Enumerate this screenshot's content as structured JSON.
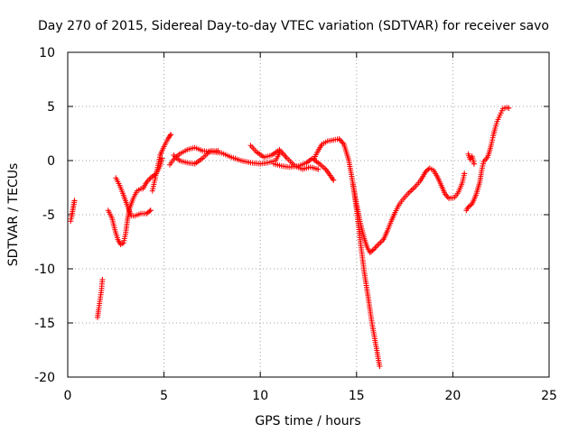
{
  "chart_data": {
    "type": "scatter",
    "title": "Day 270 of 2015, Sidereal Day-to-day VTEC variation (SDTVAR) for receiver savo",
    "xlabel": "GPS time / hours",
    "ylabel": "SDTVAR / TECUs",
    "xlim": [
      0,
      25
    ],
    "ylim": [
      -20,
      10
    ],
    "xticks": [
      0,
      5,
      10,
      15,
      20,
      25
    ],
    "yticks": [
      -20,
      -15,
      -10,
      -5,
      0,
      5,
      10
    ],
    "grid": true,
    "marker": "+",
    "color": "#ff0000",
    "series": [
      {
        "name": "SDTVAR",
        "segments": [
          [
            [
              0.15,
              -5.6
            ],
            [
              0.2,
              -5.2
            ],
            [
              0.25,
              -4.7
            ],
            [
              0.3,
              -4.2
            ],
            [
              0.35,
              -3.7
            ]
          ],
          [
            [
              1.55,
              -14.5
            ],
            [
              1.6,
              -13.8
            ],
            [
              1.65,
              -13.2
            ],
            [
              1.7,
              -12.6
            ],
            [
              1.75,
              -12.0
            ],
            [
              1.8,
              -11.0
            ]
          ],
          [
            [
              2.1,
              -4.6
            ],
            [
              2.3,
              -5.3
            ],
            [
              2.45,
              -6.4
            ],
            [
              2.6,
              -7.3
            ],
            [
              2.75,
              -7.75
            ],
            [
              2.9,
              -7.6
            ],
            [
              3.0,
              -6.8
            ],
            [
              3.1,
              -5.5
            ],
            [
              3.2,
              -4.5
            ],
            [
              3.4,
              -3.5
            ],
            [
              3.6,
              -2.8
            ],
            [
              3.8,
              -2.6
            ]
          ],
          [
            [
              2.5,
              -1.6
            ],
            [
              2.7,
              -2.3
            ],
            [
              2.9,
              -3.2
            ],
            [
              3.1,
              -4.2
            ],
            [
              3.3,
              -5.1
            ],
            [
              3.5,
              -5.1
            ],
            [
              3.8,
              -4.9
            ],
            [
              4.1,
              -4.9
            ],
            [
              4.3,
              -4.6
            ]
          ],
          [
            [
              3.9,
              -2.6
            ],
            [
              4.1,
              -2.0
            ],
            [
              4.3,
              -1.6
            ],
            [
              4.6,
              -1.2
            ],
            [
              4.8,
              -0.5
            ],
            [
              4.9,
              0.2
            ]
          ],
          [
            [
              4.4,
              -2.8
            ],
            [
              4.5,
              -2.0
            ],
            [
              4.6,
              -1.2
            ],
            [
              4.8,
              0.5
            ],
            [
              5.0,
              1.3
            ],
            [
              5.2,
              2.0
            ],
            [
              5.35,
              2.4
            ]
          ],
          [
            [
              5.3,
              -0.4
            ],
            [
              5.5,
              0.1
            ],
            [
              5.8,
              0.6
            ],
            [
              6.2,
              1.0
            ],
            [
              6.6,
              1.2
            ],
            [
              7.0,
              0.9
            ],
            [
              7.5,
              0.8
            ],
            [
              8.0,
              0.7
            ],
            [
              8.5,
              0.3
            ],
            [
              9.0,
              0.0
            ],
            [
              9.5,
              -0.2
            ],
            [
              10.0,
              -0.3
            ],
            [
              10.4,
              -0.2
            ],
            [
              10.8,
              0.0
            ],
            [
              11.0,
              0.7
            ]
          ],
          [
            [
              5.5,
              0.5
            ],
            [
              5.8,
              0.0
            ],
            [
              6.2,
              -0.2
            ],
            [
              6.6,
              -0.3
            ],
            [
              7.0,
              0.2
            ],
            [
              7.4,
              0.9
            ],
            [
              7.8,
              0.9
            ]
          ],
          [
            [
              9.5,
              1.4
            ],
            [
              9.8,
              0.8
            ],
            [
              10.2,
              0.3
            ],
            [
              10.6,
              0.5
            ],
            [
              11.0,
              1.0
            ],
            [
              11.4,
              0.2
            ],
            [
              11.8,
              -0.5
            ],
            [
              12.2,
              -0.8
            ],
            [
              12.6,
              -0.6
            ],
            [
              13.0,
              -0.8
            ]
          ],
          [
            [
              10.7,
              -0.3
            ],
            [
              11.1,
              -0.5
            ],
            [
              11.5,
              -0.6
            ],
            [
              12.0,
              -0.5
            ],
            [
              12.4,
              -0.2
            ],
            [
              12.7,
              0.2
            ],
            [
              13.0,
              -0.2
            ],
            [
              13.4,
              -0.8
            ],
            [
              13.8,
              -1.8
            ]
          ],
          [
            [
              12.8,
              0.2
            ],
            [
              13.0,
              0.9
            ],
            [
              13.2,
              1.5
            ],
            [
              13.5,
              1.8
            ],
            [
              13.8,
              1.9
            ],
            [
              14.1,
              2.0
            ],
            [
              14.35,
              1.5
            ],
            [
              14.6,
              0.0
            ],
            [
              14.8,
              -2.0
            ],
            [
              15.0,
              -4.0
            ],
            [
              15.2,
              -5.8
            ],
            [
              15.4,
              -7.2
            ],
            [
              15.55,
              -8.0
            ],
            [
              15.7,
              -8.5
            ],
            [
              15.9,
              -8.2
            ],
            [
              16.1,
              -7.8
            ],
            [
              16.4,
              -7.3
            ],
            [
              16.6,
              -6.5
            ],
            [
              16.8,
              -5.6
            ],
            [
              17.0,
              -4.8
            ],
            [
              17.2,
              -4.1
            ],
            [
              17.4,
              -3.6
            ],
            [
              17.7,
              -3.0
            ],
            [
              18.0,
              -2.5
            ],
            [
              18.3,
              -1.9
            ],
            [
              18.6,
              -1.0
            ],
            [
              18.8,
              -0.7
            ],
            [
              19.0,
              -0.9
            ],
            [
              19.2,
              -1.5
            ],
            [
              19.4,
              -2.3
            ],
            [
              19.6,
              -3.1
            ],
            [
              19.8,
              -3.5
            ],
            [
              20.1,
              -3.4
            ],
            [
              20.3,
              -2.9
            ],
            [
              20.5,
              -2.0
            ],
            [
              20.6,
              -1.2
            ]
          ],
          [
            [
              14.8,
              -2.0
            ],
            [
              15.0,
              -4.5
            ],
            [
              15.2,
              -7.5
            ],
            [
              15.4,
              -10.3
            ],
            [
              15.6,
              -12.6
            ],
            [
              15.8,
              -15.0
            ],
            [
              16.0,
              -17.0
            ],
            [
              16.2,
              -19.0
            ]
          ],
          [
            [
              20.7,
              -4.6
            ],
            [
              20.8,
              -4.3
            ],
            [
              21.0,
              -4.0
            ],
            [
              21.2,
              -3.2
            ],
            [
              21.4,
              -2.0
            ],
            [
              21.5,
              -0.9
            ],
            [
              21.6,
              -0.1
            ],
            [
              21.8,
              0.3
            ],
            [
              21.9,
              0.8
            ],
            [
              22.0,
              1.5
            ],
            [
              22.1,
              2.3
            ],
            [
              22.2,
              3.0
            ],
            [
              22.3,
              3.6
            ],
            [
              22.4,
              4.0
            ],
            [
              22.5,
              4.4
            ],
            [
              22.6,
              4.8
            ],
            [
              22.8,
              4.9
            ],
            [
              22.9,
              4.85
            ]
          ],
          [
            [
              20.8,
              0.6
            ],
            [
              20.9,
              0.1
            ],
            [
              21.0,
              0.4
            ],
            [
              21.1,
              -0.3
            ]
          ]
        ]
      }
    ]
  }
}
